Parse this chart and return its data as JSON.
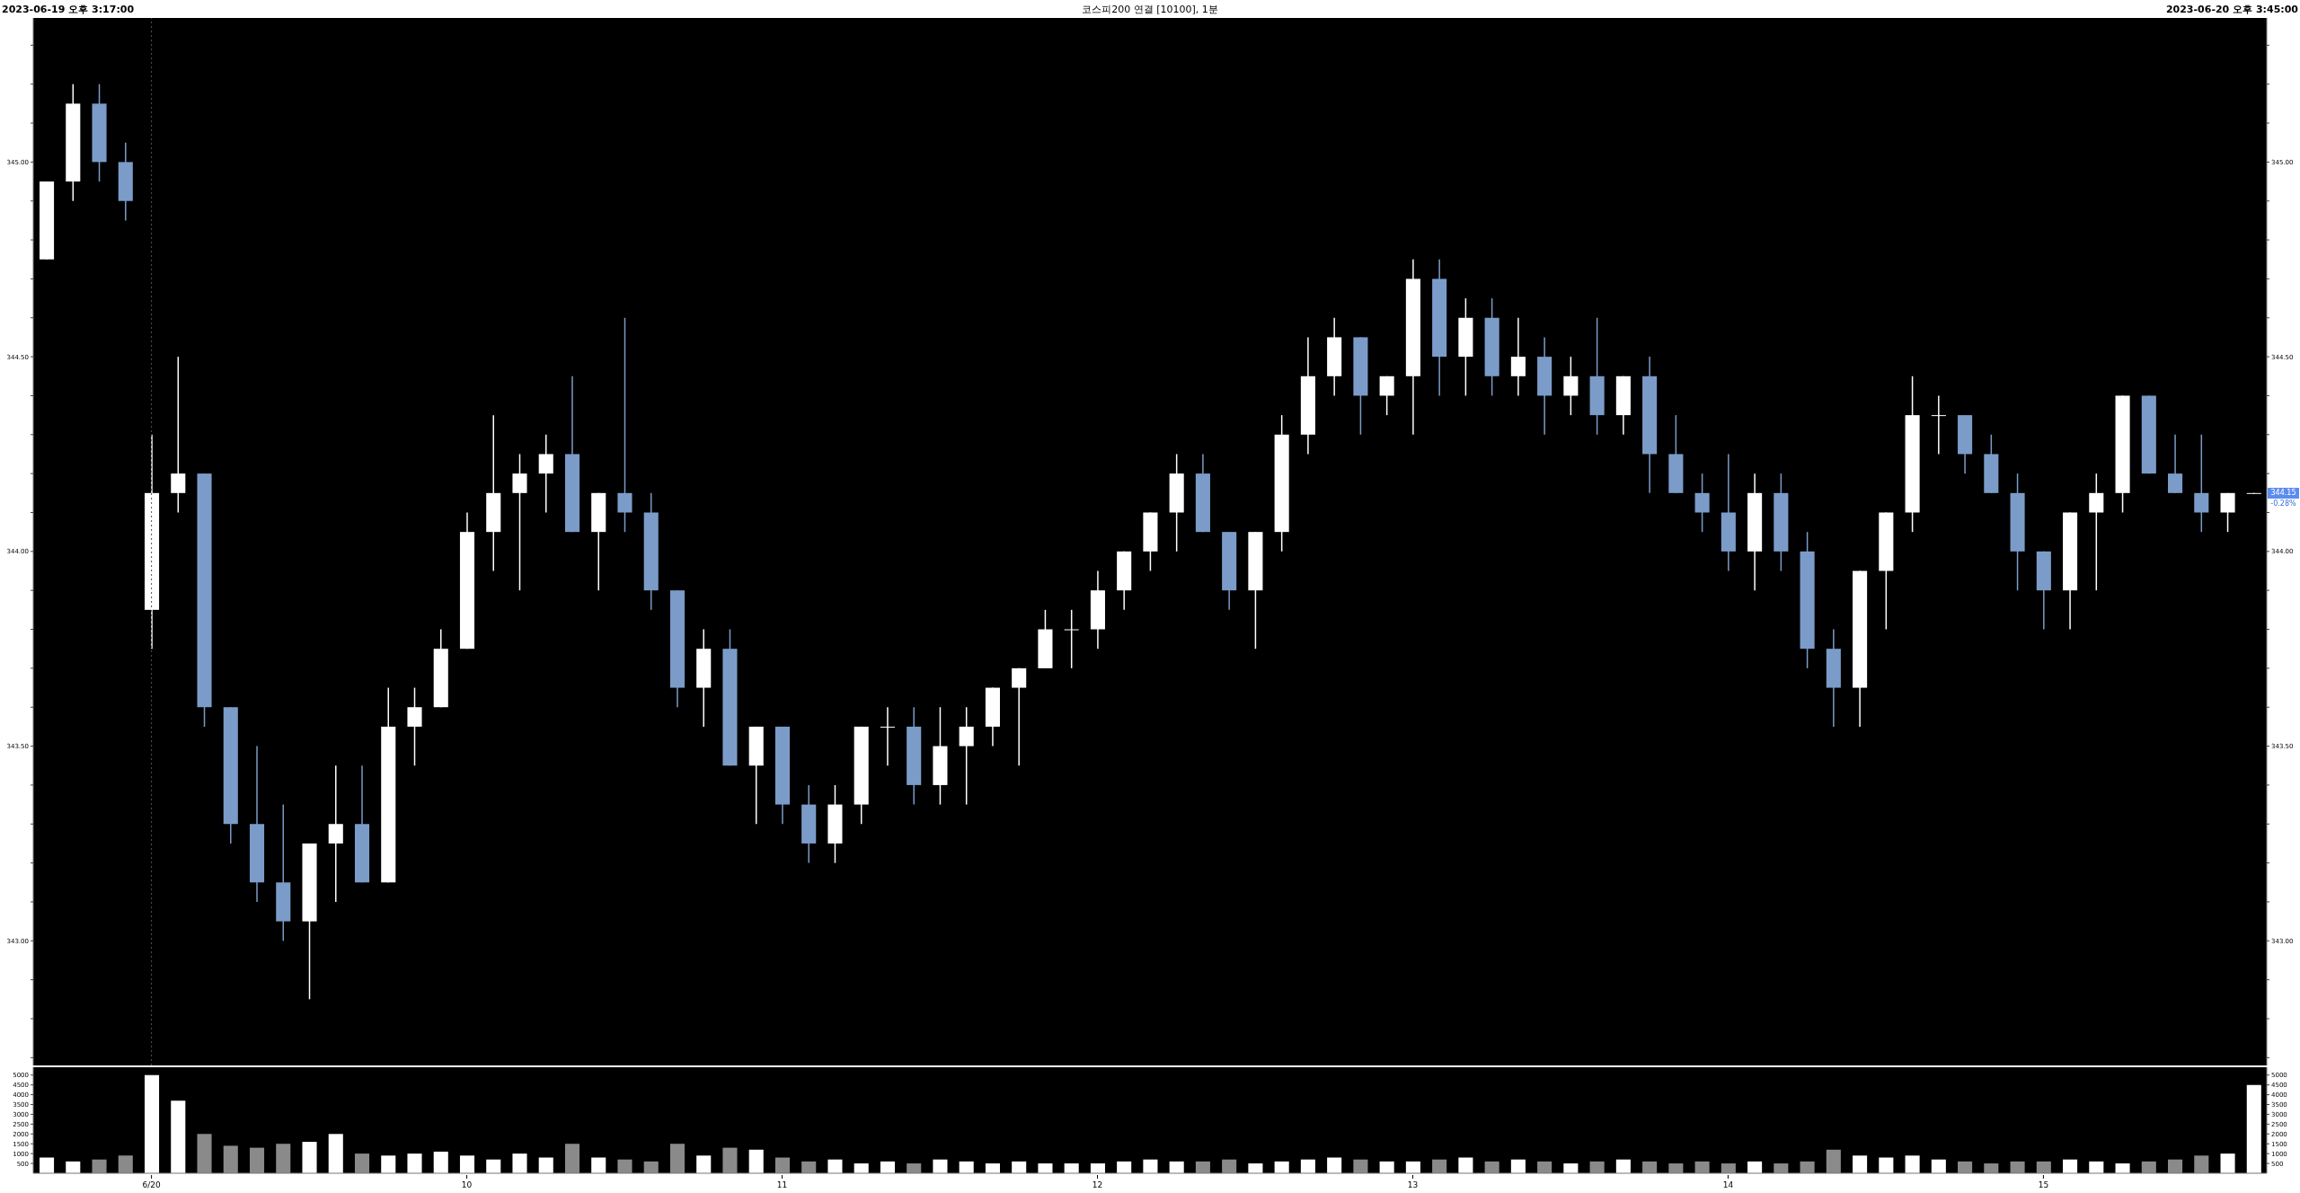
{
  "chart_data": [
    {
      "type": "candlestick",
      "title": "코스피200 연결 [10100], 1분",
      "annotations": [
        "2023-06-19 오후 3:17:00",
        "2023-06-20 오후 3:45:00",
        {
          "text": "344.15",
          "y": 344.15
        },
        "-0.28%"
      ],
      "categories": [
        null,
        null,
        null,
        null,
        "6/20",
        null,
        null,
        null,
        null,
        null,
        null,
        null,
        null,
        null,
        null,
        null,
        "10",
        null,
        null,
        null,
        null,
        null,
        null,
        null,
        null,
        null,
        null,
        null,
        "11",
        null,
        null,
        null,
        null,
        null,
        null,
        null,
        null,
        null,
        null,
        null,
        "12",
        null,
        null,
        null,
        null,
        null,
        null,
        null,
        null,
        null,
        null,
        null,
        "13",
        null,
        null,
        null,
        null,
        null,
        null,
        null,
        null,
        null,
        null,
        null,
        "14",
        null,
        null,
        null,
        null,
        null,
        null,
        null,
        null,
        null,
        null,
        null,
        "15",
        null,
        null,
        null,
        null,
        null,
        null,
        null,
        null
      ],
      "ohlc": [
        [
          344.75,
          344.95,
          344.75,
          344.95
        ],
        [
          344.95,
          345.2,
          344.9,
          345.15
        ],
        [
          345.15,
          345.2,
          344.95,
          345.0
        ],
        [
          345.0,
          345.05,
          344.85,
          344.9
        ],
        [
          343.85,
          344.3,
          343.75,
          344.15
        ],
        [
          344.15,
          344.5,
          344.1,
          344.2
        ],
        [
          344.2,
          344.2,
          343.55,
          343.6
        ],
        [
          343.6,
          343.6,
          343.25,
          343.3
        ],
        [
          343.3,
          343.5,
          343.1,
          343.15
        ],
        [
          343.15,
          343.35,
          343.0,
          343.05
        ],
        [
          343.05,
          343.25,
          342.85,
          343.25
        ],
        [
          343.25,
          343.45,
          343.1,
          343.3
        ],
        [
          343.3,
          343.45,
          343.15,
          343.15
        ],
        [
          343.15,
          343.65,
          343.15,
          343.55
        ],
        [
          343.55,
          343.65,
          343.45,
          343.6
        ],
        [
          343.6,
          343.8,
          343.6,
          343.75
        ],
        [
          343.75,
          344.1,
          343.75,
          344.05
        ],
        [
          344.05,
          344.35,
          343.95,
          344.15
        ],
        [
          344.15,
          344.25,
          343.9,
          344.2
        ],
        [
          344.2,
          344.3,
          344.1,
          344.25
        ],
        [
          344.25,
          344.45,
          344.05,
          344.05
        ],
        [
          344.05,
          344.15,
          343.9,
          344.15
        ],
        [
          344.15,
          344.6,
          344.05,
          344.1
        ],
        [
          344.1,
          344.15,
          343.85,
          343.9
        ],
        [
          343.9,
          343.9,
          343.6,
          343.65
        ],
        [
          343.65,
          343.8,
          343.55,
          343.75
        ],
        [
          343.75,
          343.8,
          343.45,
          343.45
        ],
        [
          343.45,
          343.55,
          343.3,
          343.55
        ],
        [
          343.55,
          343.55,
          343.3,
          343.35
        ],
        [
          343.35,
          343.4,
          343.2,
          343.25
        ],
        [
          343.25,
          343.4,
          343.2,
          343.35
        ],
        [
          343.35,
          343.55,
          343.3,
          343.55
        ],
        [
          343.55,
          343.6,
          343.45,
          343.55
        ],
        [
          343.55,
          343.6,
          343.35,
          343.4
        ],
        [
          343.4,
          343.6,
          343.35,
          343.5
        ],
        [
          343.5,
          343.6,
          343.35,
          343.55
        ],
        [
          343.55,
          343.65,
          343.5,
          343.65
        ],
        [
          343.65,
          343.7,
          343.45,
          343.7
        ],
        [
          343.7,
          343.85,
          343.7,
          343.8
        ],
        [
          343.8,
          343.85,
          343.7,
          343.8
        ],
        [
          343.8,
          343.95,
          343.75,
          343.9
        ],
        [
          343.9,
          344.0,
          343.85,
          344.0
        ],
        [
          344.0,
          344.1,
          343.95,
          344.1
        ],
        [
          344.1,
          344.25,
          344.0,
          344.2
        ],
        [
          344.2,
          344.25,
          344.05,
          344.05
        ],
        [
          344.05,
          344.05,
          343.85,
          343.9
        ],
        [
          343.9,
          344.05,
          343.75,
          344.05
        ],
        [
          344.05,
          344.35,
          344.0,
          344.3
        ],
        [
          344.3,
          344.55,
          344.25,
          344.45
        ],
        [
          344.45,
          344.6,
          344.4,
          344.55
        ],
        [
          344.55,
          344.55,
          344.3,
          344.4
        ],
        [
          344.4,
          344.45,
          344.35,
          344.45
        ],
        [
          344.45,
          344.75,
          344.3,
          344.7
        ],
        [
          344.7,
          344.75,
          344.4,
          344.5
        ],
        [
          344.5,
          344.65,
          344.4,
          344.6
        ],
        [
          344.6,
          344.65,
          344.4,
          344.45
        ],
        [
          344.45,
          344.6,
          344.4,
          344.5
        ],
        [
          344.5,
          344.55,
          344.3,
          344.4
        ],
        [
          344.4,
          344.5,
          344.35,
          344.45
        ],
        [
          344.45,
          344.6,
          344.3,
          344.35
        ],
        [
          344.35,
          344.45,
          344.3,
          344.45
        ],
        [
          344.45,
          344.5,
          344.15,
          344.25
        ],
        [
          344.25,
          344.35,
          344.15,
          344.15
        ],
        [
          344.15,
          344.2,
          344.05,
          344.1
        ],
        [
          344.1,
          344.25,
          343.95,
          344.0
        ],
        [
          344.0,
          344.2,
          343.9,
          344.15
        ],
        [
          344.15,
          344.2,
          343.95,
          344.0
        ],
        [
          344.0,
          344.05,
          343.7,
          343.75
        ],
        [
          343.75,
          343.8,
          343.55,
          343.65
        ],
        [
          343.65,
          343.95,
          343.55,
          343.95
        ],
        [
          343.95,
          344.1,
          343.8,
          344.1
        ],
        [
          344.1,
          344.45,
          344.05,
          344.35
        ],
        [
          344.35,
          344.4,
          344.25,
          344.35
        ],
        [
          344.35,
          344.35,
          344.2,
          344.25
        ],
        [
          344.25,
          344.3,
          344.15,
          344.15
        ],
        [
          344.15,
          344.2,
          343.9,
          344.0
        ],
        [
          344.0,
          344.0,
          343.8,
          343.9
        ],
        [
          343.9,
          344.1,
          343.8,
          344.1
        ],
        [
          344.1,
          344.2,
          343.9,
          344.15
        ],
        [
          344.15,
          344.4,
          344.1,
          344.4
        ],
        [
          344.4,
          344.4,
          344.2,
          344.2
        ],
        [
          344.2,
          344.3,
          344.15,
          344.15
        ],
        [
          344.15,
          344.3,
          344.05,
          344.1
        ],
        [
          344.1,
          344.15,
          344.05,
          344.15
        ],
        [
          344.15,
          344.15,
          344.15,
          344.15
        ]
      ],
      "colors": [
        "#ffffff",
        "#ffffff",
        "#7b9cc9",
        "#7b9cc9",
        "#ffffff",
        "#ffffff",
        "#7b9cc9",
        "#7b9cc9",
        "#7b9cc9",
        "#7b9cc9",
        "#ffffff",
        "#ffffff",
        "#7b9cc9",
        "#ffffff",
        "#ffffff",
        "#ffffff",
        "#ffffff",
        "#ffffff",
        "#ffffff",
        "#ffffff",
        "#7b9cc9",
        "#ffffff",
        "#7b9cc9",
        "#7b9cc9",
        "#7b9cc9",
        "#ffffff",
        "#7b9cc9",
        "#ffffff",
        "#7b9cc9",
        "#7b9cc9",
        "#ffffff",
        "#ffffff",
        "#ffffff",
        "#7b9cc9",
        "#ffffff",
        "#ffffff",
        "#ffffff",
        "#ffffff",
        "#ffffff",
        "#ffffff",
        "#ffffff",
        "#ffffff",
        "#ffffff",
        "#ffffff",
        "#7b9cc9",
        "#7b9cc9",
        "#ffffff",
        "#ffffff",
        "#ffffff",
        "#ffffff",
        "#7b9cc9",
        "#ffffff",
        "#ffffff",
        "#7b9cc9",
        "#ffffff",
        "#7b9cc9",
        "#ffffff",
        "#7b9cc9",
        "#ffffff",
        "#7b9cc9",
        "#ffffff",
        "#7b9cc9",
        "#7b9cc9",
        "#7b9cc9",
        "#7b9cc9",
        "#ffffff",
        "#7b9cc9",
        "#7b9cc9",
        "#7b9cc9",
        "#ffffff",
        "#ffffff",
        "#ffffff",
        "#ffffff",
        "#7b9cc9",
        "#7b9cc9",
        "#7b9cc9",
        "#7b9cc9",
        "#ffffff",
        "#ffffff",
        "#ffffff",
        "#7b9cc9",
        "#7b9cc9",
        "#7b9cc9",
        "#ffffff",
        "#ffffff"
      ],
      "ylim": [
        342.68,
        345.37
      ],
      "yticks": [
        {
          "value": 342.7,
          "label": null
        },
        {
          "value": 342.8,
          "label": null
        },
        {
          "value": 342.9,
          "label": null
        },
        {
          "value": 343,
          "label": "343.00"
        },
        {
          "value": 343.1,
          "label": null
        },
        {
          "value": 343.2,
          "label": null
        },
        {
          "value": 343.3,
          "label": null
        },
        {
          "value": 343.4,
          "label": null
        },
        {
          "value": 343.5,
          "label": "343.50"
        },
        {
          "value": 343.6,
          "label": null
        },
        {
          "value": 343.7,
          "label": null
        },
        {
          "value": 343.8,
          "label": null
        },
        {
          "value": 343.9,
          "label": null
        },
        {
          "value": 344,
          "label": "344.00"
        },
        {
          "value": 344.1,
          "label": null
        },
        {
          "value": 344.2,
          "label": null
        },
        {
          "value": 344.3,
          "label": null
        },
        {
          "value": 344.4,
          "label": null
        },
        {
          "value": 344.5,
          "label": "344.50"
        },
        {
          "value": 344.6,
          "label": null
        },
        {
          "value": 344.7,
          "label": null
        },
        {
          "value": 344.8,
          "label": null
        },
        {
          "value": 344.9,
          "label": null
        },
        {
          "value": 345,
          "label": "345.00"
        },
        {
          "value": 345.1,
          "label": null
        },
        {
          "value": 345.2,
          "label": null
        },
        {
          "value": 345.3,
          "label": null
        }
      ],
      "y2lim": [
        342.68,
        345.37
      ],
      "y2ticks": [
        {
          "value": 342.7,
          "label": null
        },
        {
          "value": 342.8,
          "label": null
        },
        {
          "value": 342.9,
          "label": null
        },
        {
          "value": 343,
          "label": "343.00"
        },
        {
          "value": 343.1,
          "label": null
        },
        {
          "value": 343.2,
          "label": null
        },
        {
          "value": 343.3,
          "label": null
        },
        {
          "value": 343.4,
          "label": null
        },
        {
          "value": 343.5,
          "label": "343.50"
        },
        {
          "value": 343.6,
          "label": null
        },
        {
          "value": 343.7,
          "label": null
        },
        {
          "value": 343.8,
          "label": null
        },
        {
          "value": 343.9,
          "label": null
        },
        {
          "value": 344,
          "label": "344.00"
        },
        {
          "value": 344.1,
          "label": null
        },
        {
          "value": 344.2,
          "label": null
        },
        {
          "value": 344.3,
          "label": null
        },
        {
          "value": 344.4,
          "label": null
        },
        {
          "value": 344.5,
          "label": "344.50"
        },
        {
          "value": 344.6,
          "label": null
        },
        {
          "value": 344.7,
          "label": null
        },
        {
          "value": 344.8,
          "label": null
        },
        {
          "value": 344.9,
          "label": null
        },
        {
          "value": 345,
          "label": "345.00"
        },
        {
          "value": 345.1,
          "label": null
        },
        {
          "value": 345.2,
          "label": null
        },
        {
          "value": 345.3,
          "label": null
        }
      ],
      "tick_labels": "y",
      "ref_lines": [
        {
          "axis": "x",
          "value": "6/20",
          "color": "#555555",
          "line_style": "dotted"
        }
      ]
    },
    {
      "type": "bar",
      "categories": [
        null,
        null,
        null,
        null,
        "6/20",
        null,
        null,
        null,
        null,
        null,
        null,
        null,
        null,
        null,
        null,
        null,
        "10",
        null,
        null,
        null,
        null,
        null,
        null,
        null,
        null,
        null,
        null,
        null,
        "11",
        null,
        null,
        null,
        null,
        null,
        null,
        null,
        null,
        null,
        null,
        null,
        "12",
        null,
        null,
        null,
        null,
        null,
        null,
        null,
        null,
        null,
        null,
        null,
        "13",
        null,
        null,
        null,
        null,
        null,
        null,
        null,
        null,
        null,
        null,
        null,
        "14",
        null,
        null,
        null,
        null,
        null,
        null,
        null,
        null,
        null,
        null,
        null,
        "15",
        null,
        null,
        null,
        null,
        null,
        null,
        null,
        null
      ],
      "values": [
        800,
        600,
        700,
        900,
        5000,
        3700,
        2000,
        1400,
        1300,
        1500,
        1600,
        2000,
        1000,
        900,
        1000,
        1100,
        900,
        700,
        1000,
        800,
        1500,
        800,
        700,
        600,
        1500,
        900,
        1300,
        1200,
        800,
        600,
        700,
        500,
        600,
        500,
        700,
        600,
        500,
        600,
        500,
        500,
        500,
        600,
        700,
        600,
        600,
        700,
        500,
        600,
        700,
        800,
        700,
        600,
        600,
        700,
        800,
        600,
        700,
        600,
        500,
        600,
        700,
        600,
        500,
        600,
        500,
        600,
        500,
        600,
        1200,
        900,
        800,
        900,
        700,
        600,
        500,
        600,
        600,
        700,
        600,
        500,
        600,
        700,
        900,
        1000,
        4500
      ],
      "colors": [
        "#ffffff",
        "#ffffff",
        "#8a8a8a",
        "#8a8a8a",
        "#ffffff",
        "#ffffff",
        "#8a8a8a",
        "#8a8a8a",
        "#8a8a8a",
        "#8a8a8a",
        "#ffffff",
        "#ffffff",
        "#8a8a8a",
        "#ffffff",
        "#ffffff",
        "#ffffff",
        "#ffffff",
        "#ffffff",
        "#ffffff",
        "#ffffff",
        "#8a8a8a",
        "#ffffff",
        "#8a8a8a",
        "#8a8a8a",
        "#8a8a8a",
        "#ffffff",
        "#8a8a8a",
        "#ffffff",
        "#8a8a8a",
        "#8a8a8a",
        "#ffffff",
        "#ffffff",
        "#ffffff",
        "#8a8a8a",
        "#ffffff",
        "#ffffff",
        "#ffffff",
        "#ffffff",
        "#ffffff",
        "#ffffff",
        "#ffffff",
        "#ffffff",
        "#ffffff",
        "#ffffff",
        "#8a8a8a",
        "#8a8a8a",
        "#ffffff",
        "#ffffff",
        "#ffffff",
        "#ffffff",
        "#8a8a8a",
        "#ffffff",
        "#ffffff",
        "#8a8a8a",
        "#ffffff",
        "#8a8a8a",
        "#ffffff",
        "#8a8a8a",
        "#ffffff",
        "#8a8a8a",
        "#ffffff",
        "#8a8a8a",
        "#8a8a8a",
        "#8a8a8a",
        "#8a8a8a",
        "#ffffff",
        "#8a8a8a",
        "#8a8a8a",
        "#8a8a8a",
        "#ffffff",
        "#ffffff",
        "#ffffff",
        "#ffffff",
        "#8a8a8a",
        "#8a8a8a",
        "#8a8a8a",
        "#8a8a8a",
        "#ffffff",
        "#ffffff",
        "#ffffff",
        "#8a8a8a",
        "#8a8a8a",
        "#8a8a8a",
        "#ffffff",
        "#ffffff"
      ],
      "ylim": [
        0,
        5400
      ],
      "yticks": [
        500,
        1000,
        1500,
        2000,
        2500,
        3000,
        3500,
        4000,
        4500,
        5000
      ],
      "y2lim": [
        0,
        5400
      ],
      "y2ticks": [
        500,
        1000,
        1500,
        2000,
        2500,
        3000,
        3500,
        4000,
        4500,
        5000
      ]
    }
  ]
}
